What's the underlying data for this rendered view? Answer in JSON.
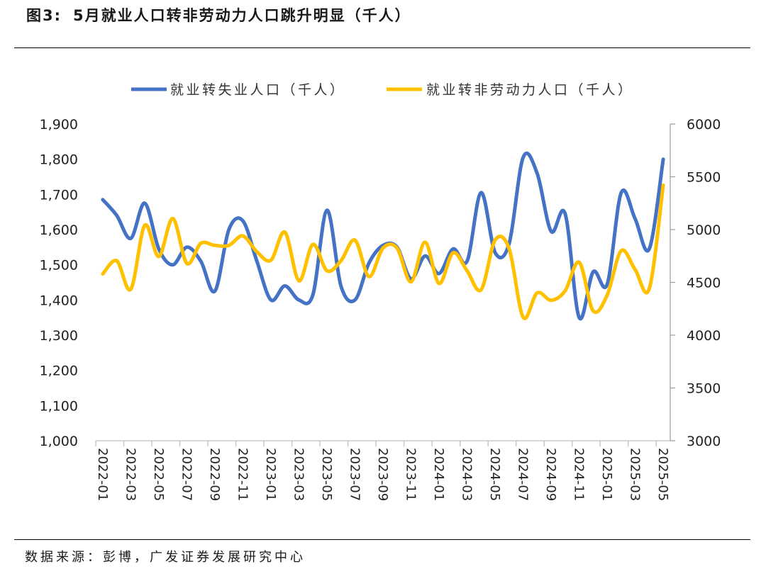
{
  "title": {
    "figure_label": "图3:",
    "text": "5月就业人口转非劳动力人口跳升明显（千人）"
  },
  "source": "数据来源：彭博，广发证券发展研究中心",
  "chart_data": {
    "type": "line",
    "smooth": true,
    "grid": false,
    "legend_position": "top",
    "categories": [
      "2022-01",
      "2022-02",
      "2022-03",
      "2022-04",
      "2022-05",
      "2022-06",
      "2022-07",
      "2022-08",
      "2022-09",
      "2022-10",
      "2022-11",
      "2022-12",
      "2023-01",
      "2023-02",
      "2023-03",
      "2023-04",
      "2023-05",
      "2023-06",
      "2023-07",
      "2023-08",
      "2023-09",
      "2023-10",
      "2023-11",
      "2023-12",
      "2024-01",
      "2024-02",
      "2024-03",
      "2024-04",
      "2024-05",
      "2024-06",
      "2024-07",
      "2024-08",
      "2024-09",
      "2024-10",
      "2024-11",
      "2024-12",
      "2025-01",
      "2025-02",
      "2025-03",
      "2025-04",
      "2025-05"
    ],
    "series": [
      {
        "name": "就业转失业人口（千人）",
        "axis": "left",
        "color": "#4472C4",
        "values": [
          1685,
          1640,
          1575,
          1675,
          1545,
          1500,
          1550,
          1510,
          1425,
          1600,
          1625,
          1510,
          1400,
          1440,
          1400,
          1415,
          1655,
          1440,
          1400,
          1505,
          1555,
          1550,
          1460,
          1525,
          1475,
          1545,
          1510,
          1705,
          1535,
          1560,
          1805,
          1760,
          1595,
          1645,
          1350,
          1480,
          1445,
          1705,
          1630,
          1545,
          1800
        ]
      },
      {
        "name": "就业转非劳动力人口（千人）",
        "axis": "right",
        "color": "#FFC000",
        "values": [
          4580,
          4705,
          4435,
          5040,
          4745,
          5105,
          4680,
          4870,
          4850,
          4850,
          4940,
          4790,
          4710,
          4975,
          4515,
          4860,
          4610,
          4705,
          4900,
          4555,
          4825,
          4825,
          4505,
          4880,
          4490,
          4780,
          4610,
          4430,
          4900,
          4820,
          4170,
          4400,
          4330,
          4420,
          4690,
          4230,
          4380,
          4800,
          4620,
          4440,
          5420
        ]
      }
    ],
    "y_left": {
      "ylim": [
        1000,
        1900
      ],
      "ticks": [
        "1,000",
        "1,100",
        "1,200",
        "1,300",
        "1,400",
        "1,500",
        "1,600",
        "1,700",
        "1,800",
        "1,900"
      ]
    },
    "y_right": {
      "ylim": [
        3000,
        6000
      ],
      "ticks": [
        "3000",
        "3500",
        "4000",
        "4500",
        "5000",
        "5500",
        "6000"
      ]
    }
  }
}
